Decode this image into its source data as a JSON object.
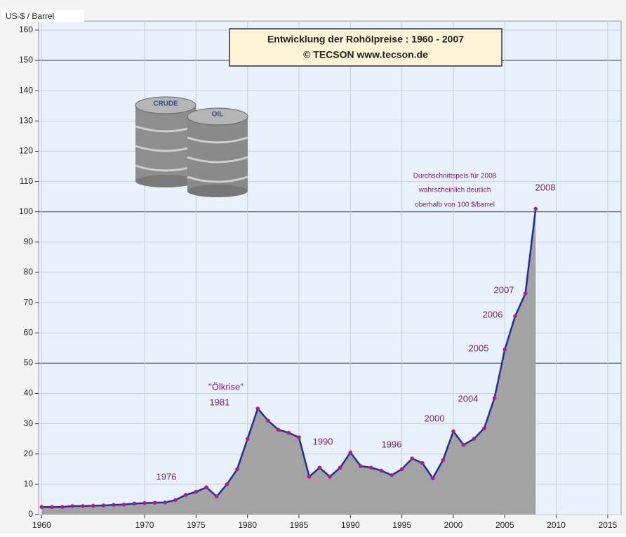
{
  "chart_data": {
    "type": "area",
    "title": "Entwicklung der Rohölpreise :  1960 - 2007",
    "subtitle": "© TECSON       www.tecson.de",
    "y_label": "US-$ / Barrel",
    "x": [
      1960,
      1961,
      1962,
      1963,
      1964,
      1965,
      1966,
      1967,
      1968,
      1969,
      1970,
      1971,
      1972,
      1973,
      1974,
      1975,
      1976,
      1977,
      1978,
      1979,
      1980,
      1981,
      1982,
      1983,
      1984,
      1985,
      1986,
      1987,
      1988,
      1989,
      1990,
      1991,
      1992,
      1993,
      1994,
      1995,
      1996,
      1997,
      1998,
      1999,
      2000,
      2001,
      2002,
      2003,
      2004,
      2005,
      2006,
      2007,
      2008
    ],
    "series": [
      {
        "name": "Rohölpreis",
        "color": "#1f2f9e",
        "marker_color": "#b01a8c",
        "area_color": "#a3a3a3",
        "values": [
          2.5,
          2.5,
          2.5,
          2.8,
          2.8,
          2.9,
          3.0,
          3.2,
          3.3,
          3.6,
          3.8,
          3.9,
          4.0,
          4.8,
          6.5,
          7.5,
          9.0,
          6.0,
          10.0,
          15.0,
          25.0,
          35.0,
          31.0,
          28.0,
          27.0,
          25.5,
          12.5,
          15.5,
          12.5,
          15.5,
          20.5,
          16.0,
          15.5,
          14.5,
          13.0,
          15.0,
          18.5,
          17.0,
          12.0,
          18.0,
          27.5,
          23.0,
          25.0,
          28.5,
          38.5,
          54.5,
          65.5,
          73.0,
          101.0
        ]
      }
    ],
    "xlim": [
      1959.7,
      2016.3
    ],
    "ylim": [
      0,
      163
    ],
    "xticks": [
      1960,
      1970,
      1975,
      1980,
      1985,
      1990,
      1995,
      2000,
      2005,
      2010,
      2015
    ],
    "yticks": [
      0,
      10,
      20,
      30,
      40,
      50,
      60,
      70,
      80,
      90,
      100,
      110,
      120,
      130,
      140,
      150,
      160
    ],
    "grid": true,
    "annotations": [
      "\"Ölkrise\"",
      "1981",
      "1976",
      "1990",
      "1996",
      "2000",
      "2004",
      "2005",
      "2006",
      "2007",
      "2008",
      "Durchschnittspeis für 2008",
      "wahrscheinlich deutlich",
      "oberhalb von 100 $/barrel"
    ],
    "barrel_labels": [
      "CRUDE",
      "OIL"
    ]
  }
}
